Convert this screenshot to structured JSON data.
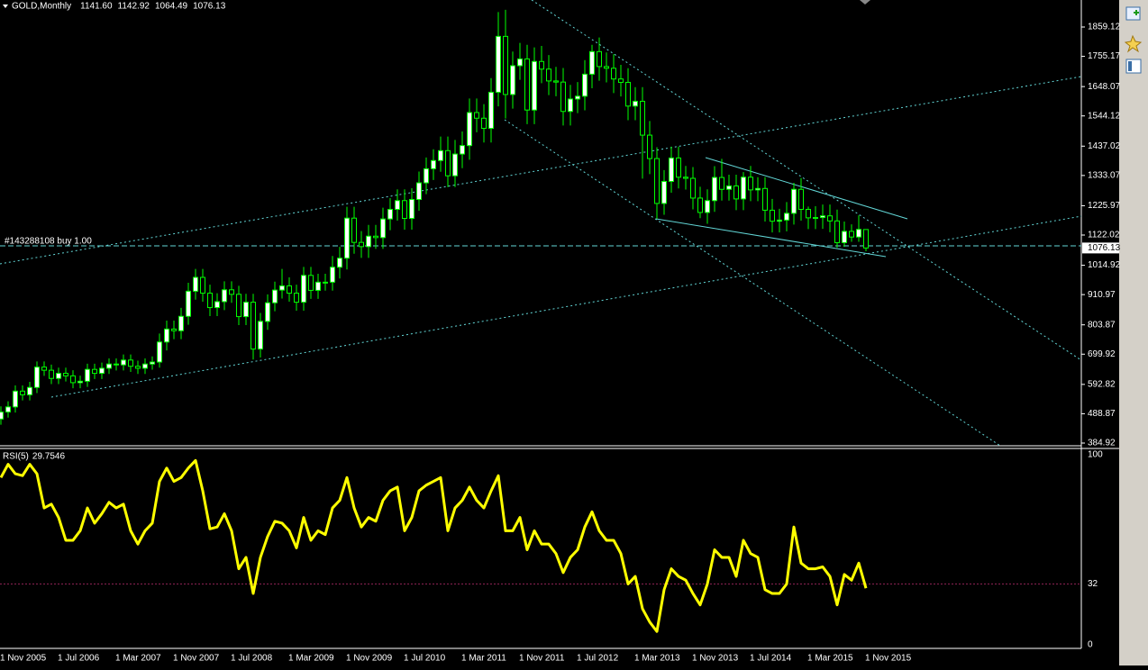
{
  "chart_data": {
    "type": "candlestick",
    "header": {
      "symbol": "GOLD,Monthly",
      "value_labels": [
        "1141.60",
        "1142.92",
        "1064.49",
        "1076.13"
      ]
    },
    "order_label": "#143288108 buy 1.00",
    "categories": [
      "1 Nov 2005",
      null,
      null,
      null,
      null,
      null,
      null,
      null,
      "1 Jul 2006",
      null,
      null,
      null,
      null,
      null,
      null,
      null,
      "1 Mar 2007",
      null,
      null,
      null,
      null,
      null,
      null,
      null,
      "1 Nov 2007",
      null,
      null,
      null,
      null,
      null,
      null,
      null,
      "1 Jul 2008",
      null,
      null,
      null,
      null,
      null,
      null,
      null,
      "1 Mar 2009",
      null,
      null,
      null,
      null,
      null,
      null,
      null,
      "1 Nov 2009",
      null,
      null,
      null,
      null,
      null,
      null,
      null,
      "1 Jul 2010",
      null,
      null,
      null,
      null,
      null,
      null,
      null,
      "1 Mar 2011",
      null,
      null,
      null,
      null,
      null,
      null,
      null,
      "1 Nov 2011",
      null,
      null,
      null,
      null,
      null,
      null,
      null,
      "1 Jul 2012",
      null,
      null,
      null,
      null,
      null,
      null,
      null,
      "1 Mar 2013",
      null,
      null,
      null,
      null,
      null,
      null,
      null,
      "1 Nov 2013",
      null,
      null,
      null,
      null,
      null,
      null,
      null,
      "1 Jul 2014",
      null,
      null,
      null,
      null,
      null,
      null,
      null,
      "1 Mar 2015",
      null,
      null,
      null,
      null,
      null,
      null,
      null,
      "1 Nov 2015"
    ],
    "candles": [
      [
        470,
        515,
        450,
        495
      ],
      [
        495,
        533,
        475,
        513
      ],
      [
        513,
        589,
        493,
        569
      ],
      [
        569,
        589,
        536,
        556
      ],
      [
        556,
        602,
        536,
        582
      ],
      [
        582,
        674,
        562,
        654
      ],
      [
        654,
        674,
        623,
        643
      ],
      [
        643,
        663,
        594,
        614
      ],
      [
        614,
        652,
        594,
        632
      ],
      [
        632,
        652,
        603,
        623
      ],
      [
        623,
        643,
        579,
        599
      ],
      [
        599,
        624,
        579,
        604
      ],
      [
        604,
        666,
        584,
        646
      ],
      [
        646,
        666,
        612,
        632
      ],
      [
        632,
        670,
        612,
        650
      ],
      [
        650,
        685,
        630,
        665
      ],
      [
        665,
        685,
        642,
        662
      ],
      [
        662,
        699,
        642,
        679
      ],
      [
        679,
        699,
        637,
        657
      ],
      [
        657,
        677,
        630,
        650
      ],
      [
        650,
        685,
        630,
        665
      ],
      [
        665,
        692,
        645,
        672
      ],
      [
        672,
        773,
        652,
        743
      ],
      [
        743,
        819,
        713,
        789
      ],
      [
        789,
        819,
        753,
        783
      ],
      [
        783,
        864,
        753,
        834
      ],
      [
        834,
        953,
        804,
        923
      ],
      [
        923,
        1002,
        893,
        972
      ],
      [
        972,
        1002,
        886,
        916
      ],
      [
        916,
        946,
        835,
        865
      ],
      [
        865,
        916,
        835,
        886
      ],
      [
        886,
        958,
        856,
        928
      ],
      [
        928,
        958,
        882,
        912
      ],
      [
        912,
        942,
        803,
        833
      ],
      [
        833,
        914,
        803,
        884
      ],
      [
        884,
        914,
        681,
        718
      ],
      [
        718,
        846,
        688,
        816
      ],
      [
        816,
        912,
        786,
        882
      ],
      [
        882,
        957,
        852,
        927
      ],
      [
        927,
        1002,
        897,
        942
      ],
      [
        942,
        972,
        886,
        916
      ],
      [
        916,
        946,
        854,
        884
      ],
      [
        884,
        1009,
        854,
        979
      ],
      [
        979,
        1009,
        896,
        926
      ],
      [
        926,
        985,
        896,
        955
      ],
      [
        955,
        985,
        925,
        955
      ],
      [
        955,
        1048,
        925,
        1008
      ],
      [
        1008,
        1080,
        968,
        1040
      ],
      [
        1040,
        1222,
        1000,
        1182
      ],
      [
        1182,
        1222,
        1056,
        1096
      ],
      [
        1096,
        1136,
        1041,
        1081
      ],
      [
        1081,
        1158,
        1041,
        1118
      ],
      [
        1118,
        1158,
        1073,
        1113
      ],
      [
        1113,
        1219,
        1073,
        1179
      ],
      [
        1179,
        1253,
        1139,
        1213
      ],
      [
        1213,
        1284,
        1173,
        1244
      ],
      [
        1244,
        1284,
        1141,
        1181
      ],
      [
        1181,
        1288,
        1141,
        1248
      ],
      [
        1248,
        1347,
        1208,
        1307
      ],
      [
        1307,
        1397,
        1267,
        1357
      ],
      [
        1357,
        1426,
        1317,
        1386
      ],
      [
        1386,
        1471,
        1346,
        1421
      ],
      [
        1421,
        1471,
        1292,
        1332
      ],
      [
        1332,
        1459,
        1292,
        1409
      ],
      [
        1409,
        1489,
        1359,
        1439
      ],
      [
        1439,
        1606,
        1389,
        1556
      ],
      [
        1556,
        1606,
        1486,
        1536
      ],
      [
        1536,
        1586,
        1450,
        1500
      ],
      [
        1500,
        1678,
        1450,
        1628
      ],
      [
        1628,
        1912,
        1578,
        1826
      ],
      [
        1826,
        1920,
        1535,
        1620
      ],
      [
        1620,
        1772,
        1570,
        1722
      ],
      [
        1722,
        1803,
        1672,
        1746
      ],
      [
        1746,
        1796,
        1515,
        1565
      ],
      [
        1565,
        1787,
        1515,
        1737
      ],
      [
        1737,
        1792,
        1660,
        1710
      ],
      [
        1710,
        1760,
        1618,
        1668
      ],
      [
        1668,
        1718,
        1614,
        1664
      ],
      [
        1664,
        1714,
        1510,
        1560
      ],
      [
        1560,
        1654,
        1510,
        1604
      ],
      [
        1604,
        1664,
        1554,
        1614
      ],
      [
        1614,
        1742,
        1564,
        1692
      ],
      [
        1692,
        1796,
        1642,
        1772
      ],
      [
        1772,
        1822,
        1669,
        1719
      ],
      [
        1719,
        1769,
        1663,
        1713
      ],
      [
        1713,
        1763,
        1625,
        1675
      ],
      [
        1675,
        1725,
        1613,
        1663
      ],
      [
        1663,
        1713,
        1529,
        1579
      ],
      [
        1579,
        1646,
        1529,
        1596
      ],
      [
        1596,
        1646,
        1322,
        1476
      ],
      [
        1476,
        1526,
        1338,
        1393
      ],
      [
        1393,
        1433,
        1180,
        1234
      ],
      [
        1234,
        1352,
        1194,
        1312
      ],
      [
        1312,
        1435,
        1272,
        1395
      ],
      [
        1395,
        1435,
        1287,
        1327
      ],
      [
        1327,
        1367,
        1283,
        1323
      ],
      [
        1323,
        1363,
        1213,
        1253
      ],
      [
        1253,
        1293,
        1182,
        1202
      ],
      [
        1202,
        1284,
        1162,
        1244
      ],
      [
        1244,
        1366,
        1204,
        1326
      ],
      [
        1326,
        1392,
        1244,
        1284
      ],
      [
        1284,
        1336,
        1244,
        1296
      ],
      [
        1296,
        1336,
        1210,
        1250
      ],
      [
        1250,
        1345,
        1210,
        1327
      ],
      [
        1327,
        1367,
        1242,
        1282
      ],
      [
        1282,
        1327,
        1242,
        1287
      ],
      [
        1287,
        1327,
        1170,
        1210
      ],
      [
        1210,
        1250,
        1131,
        1171
      ],
      [
        1171,
        1215,
        1131,
        1175
      ],
      [
        1175,
        1239,
        1135,
        1199
      ],
      [
        1199,
        1307,
        1159,
        1284
      ],
      [
        1284,
        1324,
        1173,
        1213
      ],
      [
        1213,
        1223,
        1143,
        1183
      ],
      [
        1183,
        1224,
        1143,
        1184
      ],
      [
        1184,
        1230,
        1144,
        1190
      ],
      [
        1190,
        1230,
        1132,
        1172
      ],
      [
        1172,
        1212,
        1077,
        1095
      ],
      [
        1095,
        1170,
        1080,
        1135
      ],
      [
        1135,
        1160,
        1098,
        1115
      ],
      [
        1115,
        1192,
        1098,
        1142
      ],
      [
        1141.6,
        1142.92,
        1064.49,
        1076.13
      ]
    ],
    "ylim": [
      375.35,
      1954.85
    ],
    "yticks": [
      1859.12,
      1755.17,
      1648.07,
      1544.12,
      1437.02,
      1333.07,
      1225.97,
      1122.02,
      1014.92,
      910.97,
      803.87,
      699.92,
      592.82,
      488.87,
      384.92
    ],
    "bull_color": "#ffffff",
    "bear_color": "#000000",
    "wick_color": "#00ff00",
    "rsi": {
      "name": "RSI(5)",
      "color": "#ffff00",
      "ylim": [
        0,
        100
      ],
      "yticks": [
        100,
        32,
        0
      ],
      "values": [
        88,
        95,
        90,
        89,
        95,
        90,
        72,
        74,
        67,
        55,
        55,
        60,
        72,
        64,
        69,
        75,
        72,
        74,
        60,
        53,
        60,
        64,
        86,
        93,
        86,
        88,
        93,
        97,
        81,
        61,
        62,
        69,
        60,
        40,
        46,
        27,
        46,
        57,
        65,
        64,
        60,
        51,
        67,
        55,
        60,
        58,
        72,
        76,
        88,
        72,
        62,
        67,
        65,
        76,
        81,
        83,
        60,
        67,
        81,
        84,
        86,
        88,
        60,
        72,
        76,
        83,
        76,
        72,
        81,
        89,
        60,
        60,
        67,
        50,
        60,
        53,
        53,
        48,
        38,
        46,
        50,
        62,
        70,
        60,
        55,
        55,
        48,
        32,
        36,
        19,
        12,
        7,
        29,
        40,
        36,
        34,
        27,
        21,
        32,
        50,
        46,
        46,
        36,
        55,
        48,
        46,
        29,
        27,
        27,
        32,
        62,
        43,
        40,
        40,
        41,
        36,
        21,
        37,
        34,
        43,
        29.7546
      ]
    }
  }
}
